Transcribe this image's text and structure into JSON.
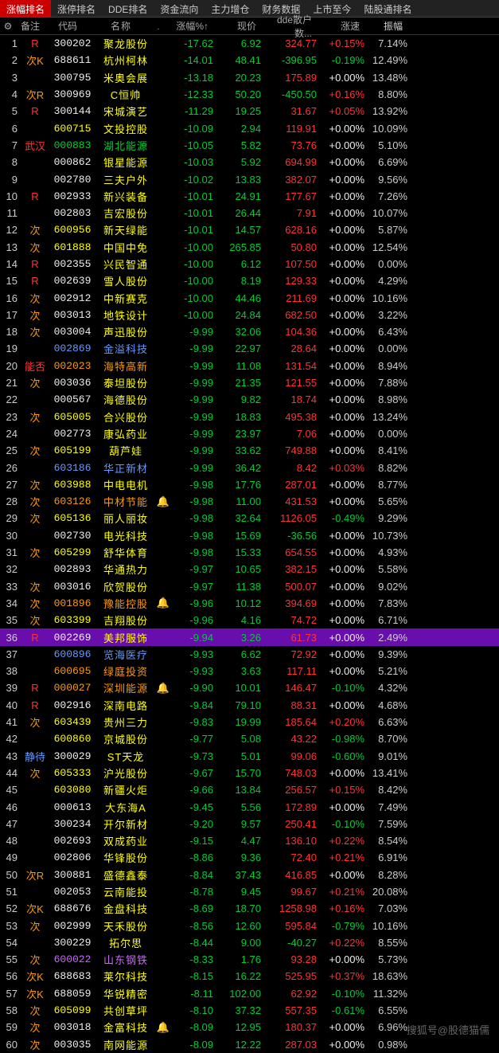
{
  "tabs": [
    "涨幅排名",
    "涨停排名",
    "DDE排名",
    "资金流向",
    "主力增仓",
    "财务数据",
    "上市至今",
    "陆股通排名"
  ],
  "activeTab": 0,
  "headers": {
    "note": "备注",
    "code": "代码",
    "name": "名称",
    "pct": "涨幅%↑",
    "price": "现价",
    "dde": "dde散户数...",
    "spd": "涨速",
    "amp": "振幅"
  },
  "watermark": "搜狐号@股德猫儒",
  "codeColors": {
    "white": "#eee",
    "yellow": "#ff0",
    "blue": "#69f",
    "purple": "#c6f",
    "orange": "#f90",
    "green": "#0c3"
  },
  "rows": [
    {
      "i": 1,
      "note": "R",
      "nc": "red",
      "code": "300202",
      "cc": "white",
      "name": "聚龙股份",
      "ncc": "yellow",
      "pct": "-17.62",
      "price": "6.92",
      "dde": "324.77",
      "dc": "red",
      "spd": "+0.15%",
      "sc": "red",
      "amp": "7.14%"
    },
    {
      "i": 2,
      "note": "次K",
      "nc": "orange",
      "code": "688611",
      "cc": "white",
      "name": "杭州柯林",
      "ncc": "yellow",
      "pct": "-14.01",
      "price": "48.41",
      "dde": "-396.95",
      "dc": "green",
      "spd": "-0.19%",
      "sc": "green",
      "amp": "12.49%"
    },
    {
      "i": 3,
      "note": "",
      "nc": "",
      "code": "300795",
      "cc": "white",
      "name": "米奥会展",
      "ncc": "yellow",
      "pct": "-13.18",
      "price": "20.23",
      "dde": "175.89",
      "dc": "red",
      "spd": "+0.00%",
      "sc": "white",
      "amp": "13.48%"
    },
    {
      "i": 4,
      "note": "次R",
      "nc": "orange",
      "code": "300969",
      "cc": "white",
      "name": "C恒帅",
      "ncc": "yellow",
      "pct": "-12.33",
      "price": "50.20",
      "dde": "-450.50",
      "dc": "green",
      "spd": "+0.16%",
      "sc": "red",
      "amp": "8.80%"
    },
    {
      "i": 5,
      "note": "R",
      "nc": "red",
      "code": "300144",
      "cc": "white",
      "name": "宋城演艺",
      "ncc": "yellow",
      "pct": "-11.29",
      "price": "19.25",
      "dde": "31.67",
      "dc": "red",
      "spd": "+0.05%",
      "sc": "red",
      "amp": "13.92%"
    },
    {
      "i": 6,
      "note": "",
      "nc": "",
      "code": "600715",
      "cc": "yellow",
      "name": "文投控股",
      "ncc": "yellow",
      "pct": "-10.09",
      "price": "2.94",
      "dde": "119.91",
      "dc": "red",
      "spd": "+0.00%",
      "sc": "white",
      "amp": "10.09%"
    },
    {
      "i": 7,
      "note": "武汉",
      "nc": "red",
      "code": "000883",
      "cc": "green",
      "name": "湖北能源",
      "ncc": "green",
      "pct": "-10.05",
      "price": "5.82",
      "dde": "73.76",
      "dc": "red",
      "spd": "+0.00%",
      "sc": "white",
      "amp": "5.10%"
    },
    {
      "i": 8,
      "note": "",
      "nc": "",
      "code": "000862",
      "cc": "white",
      "name": "银星能源",
      "ncc": "yellow",
      "pct": "-10.03",
      "price": "5.92",
      "dde": "694.99",
      "dc": "red",
      "spd": "+0.00%",
      "sc": "white",
      "amp": "6.69%"
    },
    {
      "i": 9,
      "note": "",
      "nc": "",
      "code": "002780",
      "cc": "white",
      "name": "三夫户外",
      "ncc": "yellow",
      "pct": "-10.02",
      "price": "13.83",
      "dde": "382.07",
      "dc": "red",
      "spd": "+0.00%",
      "sc": "white",
      "amp": "9.56%"
    },
    {
      "i": 10,
      "note": "R",
      "nc": "red",
      "code": "002933",
      "cc": "white",
      "name": "新兴装备",
      "ncc": "yellow",
      "pct": "-10.01",
      "price": "24.91",
      "dde": "177.67",
      "dc": "red",
      "spd": "+0.00%",
      "sc": "white",
      "amp": "7.26%"
    },
    {
      "i": 11,
      "note": "",
      "nc": "",
      "code": "002803",
      "cc": "white",
      "name": "吉宏股份",
      "ncc": "yellow",
      "pct": "-10.01",
      "price": "26.44",
      "dde": "7.91",
      "dc": "red",
      "spd": "+0.00%",
      "sc": "white",
      "amp": "10.07%"
    },
    {
      "i": 12,
      "note": "次",
      "nc": "orange",
      "code": "600956",
      "cc": "yellow",
      "name": "新天绿能",
      "ncc": "yellow",
      "pct": "-10.01",
      "price": "14.57",
      "dde": "628.16",
      "dc": "red",
      "spd": "+0.00%",
      "sc": "white",
      "amp": "5.87%"
    },
    {
      "i": 13,
      "note": "次",
      "nc": "orange",
      "code": "601888",
      "cc": "yellow",
      "name": "中国中免",
      "ncc": "yellow",
      "pct": "-10.00",
      "price": "265.85",
      "dde": "50.80",
      "dc": "red",
      "spd": "+0.00%",
      "sc": "white",
      "amp": "12.54%"
    },
    {
      "i": 14,
      "note": "R",
      "nc": "red",
      "code": "002355",
      "cc": "white",
      "name": "兴民智通",
      "ncc": "yellow",
      "pct": "-10.00",
      "price": "6.12",
      "dde": "107.50",
      "dc": "red",
      "spd": "+0.00%",
      "sc": "white",
      "amp": "0.00%"
    },
    {
      "i": 15,
      "note": "R",
      "nc": "red",
      "code": "002639",
      "cc": "white",
      "name": "雪人股份",
      "ncc": "yellow",
      "pct": "-10.00",
      "price": "8.19",
      "dde": "129.33",
      "dc": "red",
      "spd": "+0.00%",
      "sc": "white",
      "amp": "4.29%"
    },
    {
      "i": 16,
      "note": "次",
      "nc": "orange",
      "code": "002912",
      "cc": "white",
      "name": "中新赛克",
      "ncc": "yellow",
      "pct": "-10.00",
      "price": "44.46",
      "dde": "211.69",
      "dc": "red",
      "spd": "+0.00%",
      "sc": "white",
      "amp": "10.16%"
    },
    {
      "i": 17,
      "note": "次",
      "nc": "orange",
      "code": "003013",
      "cc": "white",
      "name": "地铁设计",
      "ncc": "yellow",
      "pct": "-10.00",
      "price": "24.84",
      "dde": "682.50",
      "dc": "red",
      "spd": "+0.00%",
      "sc": "white",
      "amp": "3.22%"
    },
    {
      "i": 18,
      "note": "次",
      "nc": "orange",
      "code": "003004",
      "cc": "white",
      "name": "声迅股份",
      "ncc": "yellow",
      "pct": "-9.99",
      "price": "32.06",
      "dde": "104.36",
      "dc": "red",
      "spd": "+0.00%",
      "sc": "white",
      "amp": "6.43%"
    },
    {
      "i": 19,
      "note": "",
      "nc": "",
      "code": "002869",
      "cc": "blue",
      "name": "金溢科技",
      "ncc": "blue",
      "pct": "-9.99",
      "price": "22.97",
      "dde": "28.64",
      "dc": "red",
      "spd": "+0.00%",
      "sc": "white",
      "amp": "0.00%"
    },
    {
      "i": 20,
      "note": "能否",
      "nc": "red",
      "code": "002023",
      "cc": "orange",
      "name": "海特高新",
      "ncc": "orange",
      "pct": "-9.99",
      "price": "11.08",
      "dde": "131.54",
      "dc": "red",
      "spd": "+0.00%",
      "sc": "white",
      "amp": "8.94%"
    },
    {
      "i": 21,
      "note": "次",
      "nc": "orange",
      "code": "003036",
      "cc": "white",
      "name": "泰坦股份",
      "ncc": "yellow",
      "pct": "-9.99",
      "price": "21.35",
      "dde": "121.55",
      "dc": "red",
      "spd": "+0.00%",
      "sc": "white",
      "amp": "7.88%"
    },
    {
      "i": 22,
      "note": "",
      "nc": "",
      "code": "000567",
      "cc": "white",
      "name": "海德股份",
      "ncc": "yellow",
      "pct": "-9.99",
      "price": "9.82",
      "dde": "18.74",
      "dc": "red",
      "spd": "+0.00%",
      "sc": "white",
      "amp": "8.98%"
    },
    {
      "i": 23,
      "note": "次",
      "nc": "orange",
      "code": "605005",
      "cc": "yellow",
      "name": "合兴股份",
      "ncc": "yellow",
      "pct": "-9.99",
      "price": "18.83",
      "dde": "495.38",
      "dc": "red",
      "spd": "+0.00%",
      "sc": "white",
      "amp": "13.24%"
    },
    {
      "i": 24,
      "note": "",
      "nc": "",
      "code": "002773",
      "cc": "white",
      "name": "康弘药业",
      "ncc": "yellow",
      "pct": "-9.99",
      "price": "23.97",
      "dde": "7.06",
      "dc": "red",
      "spd": "+0.00%",
      "sc": "white",
      "amp": "0.00%"
    },
    {
      "i": 25,
      "note": "次",
      "nc": "orange",
      "code": "605199",
      "cc": "yellow",
      "name": "葫芦娃",
      "ncc": "yellow",
      "pct": "-9.99",
      "price": "33.62",
      "dde": "749.88",
      "dc": "red",
      "spd": "+0.00%",
      "sc": "white",
      "amp": "8.41%"
    },
    {
      "i": 26,
      "note": "",
      "nc": "",
      "code": "603186",
      "cc": "blue",
      "name": "华正新材",
      "ncc": "blue",
      "pct": "-9.99",
      "price": "36.42",
      "dde": "8.42",
      "dc": "red",
      "spd": "+0.03%",
      "sc": "red",
      "amp": "8.82%"
    },
    {
      "i": 27,
      "note": "次",
      "nc": "orange",
      "code": "603988",
      "cc": "yellow",
      "name": "中电电机",
      "ncc": "yellow",
      "pct": "-9.98",
      "price": "17.76",
      "dde": "287.01",
      "dc": "red",
      "spd": "+0.00%",
      "sc": "white",
      "amp": "8.77%"
    },
    {
      "i": 28,
      "note": "次",
      "nc": "orange",
      "code": "603126",
      "cc": "orange",
      "name": "中材节能",
      "ncc": "orange",
      "bell": true,
      "pct": "-9.98",
      "price": "11.00",
      "dde": "431.53",
      "dc": "red",
      "spd": "+0.00%",
      "sc": "white",
      "amp": "5.65%"
    },
    {
      "i": 29,
      "note": "次",
      "nc": "orange",
      "code": "605136",
      "cc": "yellow",
      "name": "丽人丽妆",
      "ncc": "yellow",
      "pct": "-9.98",
      "price": "32.64",
      "dde": "1126.05",
      "dc": "red",
      "spd": "-0.49%",
      "sc": "green",
      "amp": "9.29%"
    },
    {
      "i": 30,
      "note": "",
      "nc": "",
      "code": "002730",
      "cc": "white",
      "name": "电光科技",
      "ncc": "yellow",
      "pct": "-9.98",
      "price": "15.69",
      "dde": "-36.56",
      "dc": "green",
      "spd": "+0.00%",
      "sc": "white",
      "amp": "10.73%"
    },
    {
      "i": 31,
      "note": "次",
      "nc": "orange",
      "code": "605299",
      "cc": "yellow",
      "name": "舒华体育",
      "ncc": "yellow",
      "pct": "-9.98",
      "price": "15.33",
      "dde": "654.55",
      "dc": "red",
      "spd": "+0.00%",
      "sc": "white",
      "amp": "4.93%"
    },
    {
      "i": 32,
      "note": "",
      "nc": "",
      "code": "002893",
      "cc": "white",
      "name": "华通热力",
      "ncc": "yellow",
      "pct": "-9.97",
      "price": "10.65",
      "dde": "382.15",
      "dc": "red",
      "spd": "+0.00%",
      "sc": "white",
      "amp": "5.58%"
    },
    {
      "i": 33,
      "note": "次",
      "nc": "orange",
      "code": "003016",
      "cc": "white",
      "name": "欣贺股份",
      "ncc": "yellow",
      "pct": "-9.97",
      "price": "11.38",
      "dde": "500.07",
      "dc": "red",
      "spd": "+0.00%",
      "sc": "white",
      "amp": "9.02%"
    },
    {
      "i": 34,
      "note": "次",
      "nc": "orange",
      "code": "001896",
      "cc": "orange",
      "name": "豫能控股",
      "ncc": "orange",
      "bell": true,
      "pct": "-9.96",
      "price": "10.12",
      "dde": "394.69",
      "dc": "red",
      "spd": "+0.00%",
      "sc": "white",
      "amp": "7.83%"
    },
    {
      "i": 35,
      "note": "次",
      "nc": "orange",
      "code": "603399",
      "cc": "yellow",
      "name": "吉翔股份",
      "ncc": "yellow",
      "pct": "-9.96",
      "price": "4.16",
      "dde": "74.72",
      "dc": "red",
      "spd": "+0.00%",
      "sc": "white",
      "amp": "6.71%"
    },
    {
      "i": 36,
      "note": "R",
      "nc": "red",
      "code": "002269",
      "cc": "white",
      "name": "美邦服饰",
      "ncc": "yellow",
      "pct": "-9.94",
      "price": "3.26",
      "dde": "61.73",
      "dc": "red",
      "spd": "+0.00%",
      "sc": "white",
      "amp": "2.49%",
      "hl": true
    },
    {
      "i": 37,
      "note": "",
      "nc": "",
      "code": "600896",
      "cc": "blue",
      "name": "览海医疗",
      "ncc": "blue",
      "pct": "-9.93",
      "price": "6.62",
      "dde": "72.92",
      "dc": "red",
      "spd": "+0.00%",
      "sc": "white",
      "amp": "9.39%"
    },
    {
      "i": 38,
      "note": "",
      "nc": "",
      "code": "600695",
      "cc": "orange",
      "name": "绿庭投资",
      "ncc": "orange",
      "pct": "-9.93",
      "price": "3.63",
      "dde": "117.11",
      "dc": "red",
      "spd": "+0.00%",
      "sc": "white",
      "amp": "5.21%"
    },
    {
      "i": 39,
      "note": "R",
      "nc": "red",
      "code": "000027",
      "cc": "orange",
      "name": "深圳能源",
      "ncc": "orange",
      "bell": true,
      "pct": "-9.90",
      "price": "10.01",
      "dde": "146.47",
      "dc": "red",
      "spd": "-0.10%",
      "sc": "green",
      "amp": "4.32%"
    },
    {
      "i": 40,
      "note": "R",
      "nc": "red",
      "code": "002916",
      "cc": "white",
      "name": "深南电路",
      "ncc": "yellow",
      "pct": "-9.84",
      "price": "79.10",
      "dde": "88.31",
      "dc": "red",
      "spd": "+0.00%",
      "sc": "white",
      "amp": "4.68%"
    },
    {
      "i": 41,
      "note": "次",
      "nc": "orange",
      "code": "603439",
      "cc": "yellow",
      "name": "贵州三力",
      "ncc": "yellow",
      "pct": "-9.83",
      "price": "19.99",
      "dde": "185.64",
      "dc": "red",
      "spd": "+0.20%",
      "sc": "red",
      "amp": "6.63%"
    },
    {
      "i": 42,
      "note": "",
      "nc": "",
      "code": "600860",
      "cc": "yellow",
      "name": "京城股份",
      "ncc": "yellow",
      "pct": "-9.77",
      "price": "5.08",
      "dde": "43.22",
      "dc": "red",
      "spd": "-0.98%",
      "sc": "green",
      "amp": "8.70%"
    },
    {
      "i": 43,
      "note": "静待",
      "nc": "blue",
      "code": "300029",
      "cc": "white",
      "name": "ST天龙",
      "ncc": "yellow",
      "pct": "-9.73",
      "price": "5.01",
      "dde": "99.06",
      "dc": "red",
      "spd": "-0.60%",
      "sc": "green",
      "amp": "9.01%"
    },
    {
      "i": 44,
      "note": "次",
      "nc": "orange",
      "code": "605333",
      "cc": "yellow",
      "name": "沪光股份",
      "ncc": "yellow",
      "pct": "-9.67",
      "price": "15.70",
      "dde": "748.03",
      "dc": "red",
      "spd": "+0.00%",
      "sc": "white",
      "amp": "13.41%"
    },
    {
      "i": 45,
      "note": "",
      "nc": "",
      "code": "603080",
      "cc": "yellow",
      "name": "新疆火炬",
      "ncc": "yellow",
      "pct": "-9.66",
      "price": "13.84",
      "dde": "256.57",
      "dc": "red",
      "spd": "+0.15%",
      "sc": "red",
      "amp": "8.42%"
    },
    {
      "i": 46,
      "note": "",
      "nc": "",
      "code": "000613",
      "cc": "white",
      "name": "大东海A",
      "ncc": "yellow",
      "pct": "-9.45",
      "price": "5.56",
      "dde": "172.89",
      "dc": "red",
      "spd": "+0.00%",
      "sc": "white",
      "amp": "7.49%"
    },
    {
      "i": 47,
      "note": "",
      "nc": "",
      "code": "300234",
      "cc": "white",
      "name": "开尔新材",
      "ncc": "yellow",
      "pct": "-9.20",
      "price": "9.57",
      "dde": "250.41",
      "dc": "red",
      "spd": "-0.10%",
      "sc": "green",
      "amp": "7.59%"
    },
    {
      "i": 48,
      "note": "",
      "nc": "",
      "code": "002693",
      "cc": "white",
      "name": "双成药业",
      "ncc": "yellow",
      "pct": "-9.15",
      "price": "4.47",
      "dde": "136.10",
      "dc": "red",
      "spd": "+0.22%",
      "sc": "red",
      "amp": "8.54%"
    },
    {
      "i": 49,
      "note": "",
      "nc": "",
      "code": "002806",
      "cc": "white",
      "name": "华锋股份",
      "ncc": "yellow",
      "pct": "-8.86",
      "price": "9.36",
      "dde": "72.40",
      "dc": "red",
      "spd": "+0.21%",
      "sc": "red",
      "amp": "6.91%"
    },
    {
      "i": 50,
      "note": "次R",
      "nc": "orange",
      "code": "300881",
      "cc": "white",
      "name": "盛德鑫泰",
      "ncc": "yellow",
      "pct": "-8.84",
      "price": "37.43",
      "dde": "416.85",
      "dc": "red",
      "spd": "+0.00%",
      "sc": "white",
      "amp": "8.28%"
    },
    {
      "i": 51,
      "note": "",
      "nc": "",
      "code": "002053",
      "cc": "white",
      "name": "云南能投",
      "ncc": "yellow",
      "pct": "-8.78",
      "price": "9.45",
      "dde": "99.67",
      "dc": "red",
      "spd": "+0.21%",
      "sc": "red",
      "amp": "20.08%"
    },
    {
      "i": 52,
      "note": "次K",
      "nc": "orange",
      "code": "688676",
      "cc": "white",
      "name": "金盘科技",
      "ncc": "yellow",
      "pct": "-8.69",
      "price": "18.70",
      "dde": "1258.98",
      "dc": "red",
      "spd": "+0.16%",
      "sc": "red",
      "amp": "7.03%"
    },
    {
      "i": 53,
      "note": "次",
      "nc": "orange",
      "code": "002999",
      "cc": "white",
      "name": "天禾股份",
      "ncc": "yellow",
      "pct": "-8.56",
      "price": "12.60",
      "dde": "595.84",
      "dc": "red",
      "spd": "-0.79%",
      "sc": "green",
      "amp": "10.16%"
    },
    {
      "i": 54,
      "note": "",
      "nc": "",
      "code": "300229",
      "cc": "white",
      "name": "拓尔思",
      "ncc": "yellow",
      "pct": "-8.44",
      "price": "9.00",
      "dde": "-40.27",
      "dc": "green",
      "spd": "+0.22%",
      "sc": "red",
      "amp": "8.55%"
    },
    {
      "i": 55,
      "note": "次",
      "nc": "orange",
      "code": "600022",
      "cc": "purple",
      "name": "山东钢铁",
      "ncc": "purple",
      "pct": "-8.33",
      "price": "1.76",
      "dde": "93.28",
      "dc": "red",
      "spd": "+0.00%",
      "sc": "white",
      "amp": "5.73%"
    },
    {
      "i": 56,
      "note": "次K",
      "nc": "orange",
      "code": "688683",
      "cc": "white",
      "name": "莱尔科技",
      "ncc": "yellow",
      "pct": "-8.15",
      "price": "16.22",
      "dde": "525.95",
      "dc": "red",
      "spd": "+0.37%",
      "sc": "red",
      "amp": "18.63%"
    },
    {
      "i": 57,
      "note": "次K",
      "nc": "orange",
      "code": "688059",
      "cc": "white",
      "name": "华锐精密",
      "ncc": "yellow",
      "pct": "-8.11",
      "price": "102.00",
      "dde": "62.92",
      "dc": "red",
      "spd": "-0.10%",
      "sc": "green",
      "amp": "11.32%"
    },
    {
      "i": 58,
      "note": "次",
      "nc": "orange",
      "code": "605099",
      "cc": "yellow",
      "name": "共创草坪",
      "ncc": "yellow",
      "pct": "-8.10",
      "price": "37.32",
      "dde": "557.35",
      "dc": "red",
      "spd": "-0.61%",
      "sc": "green",
      "amp": "6.55%"
    },
    {
      "i": 59,
      "note": "次",
      "nc": "orange",
      "code": "003018",
      "cc": "white",
      "name": "金富科技",
      "ncc": "yellow",
      "bell": true,
      "pct": "-8.09",
      "price": "12.95",
      "dde": "180.37",
      "dc": "red",
      "spd": "+0.00%",
      "sc": "white",
      "amp": "6.96%"
    },
    {
      "i": 60,
      "note": "次",
      "nc": "orange",
      "code": "003035",
      "cc": "white",
      "name": "南网能源",
      "ncc": "yellow",
      "pct": "-8.09",
      "price": "12.22",
      "dde": "287.03",
      "dc": "red",
      "spd": "+0.00%",
      "sc": "white",
      "amp": "0.98%"
    }
  ]
}
